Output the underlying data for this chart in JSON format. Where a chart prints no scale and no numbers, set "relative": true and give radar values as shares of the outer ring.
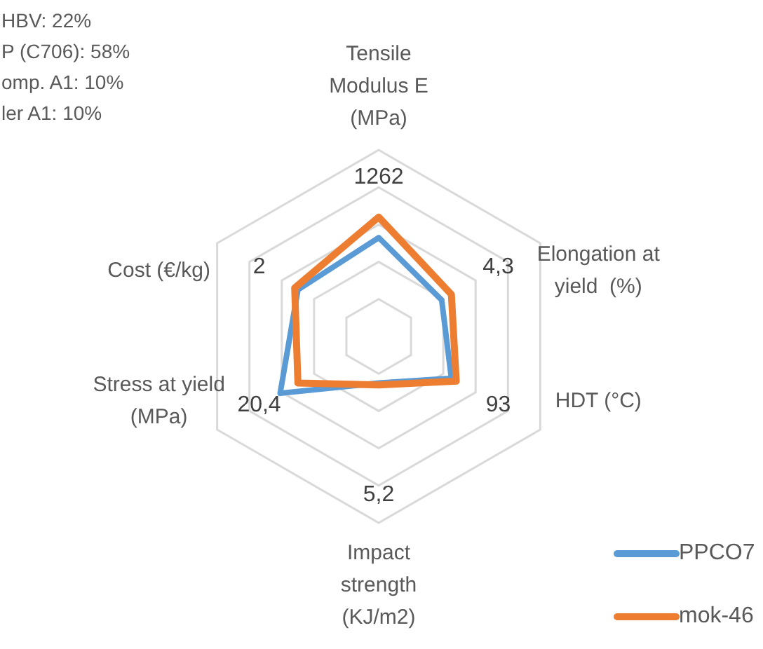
{
  "chart_data": {
    "type": "radar",
    "relative": true,
    "grid": true,
    "legend": "bottom right",
    "categories": [
      "Tensile\nModulus E\n(MPa)",
      "Elongation at\nyield  (%)",
      "HDT (°C)",
      "Impact\nstrength\n(KJ/m2)",
      "Stress at yield\n(MPa)",
      "Cost (€/kg)"
    ],
    "series": [
      {
        "name": "PPCO7",
        "color": "#5b9bd5",
        "values": [
          0.53,
          0.39,
          0.45,
          0.25,
          0.61,
          0.5
        ]
      },
      {
        "name": "mok-46",
        "color": "#ed7d31",
        "values": [
          0.64,
          0.45,
          0.48,
          0.26,
          0.5,
          0.52
        ]
      }
    ],
    "annotations": [
      "HBV: 22%",
      "P (C706): 58%",
      "omp. A1: 10%",
      "ler A1: 10%",
      {
        "text": "1262",
        "x": "Tensile\nModulus E\n(MPa)"
      },
      {
        "text": "4,3",
        "x": "Elongation at\nyield  (%)"
      },
      {
        "text": "93",
        "x": "HDT (°C)"
      },
      {
        "text": "5,2",
        "x": "Impact\nstrength\n(KJ/m2)"
      },
      {
        "text": "20,4",
        "x": "Stress at yield\n(MPa)"
      },
      {
        "text": "2",
        "x": "Cost (€/kg)"
      }
    ]
  }
}
